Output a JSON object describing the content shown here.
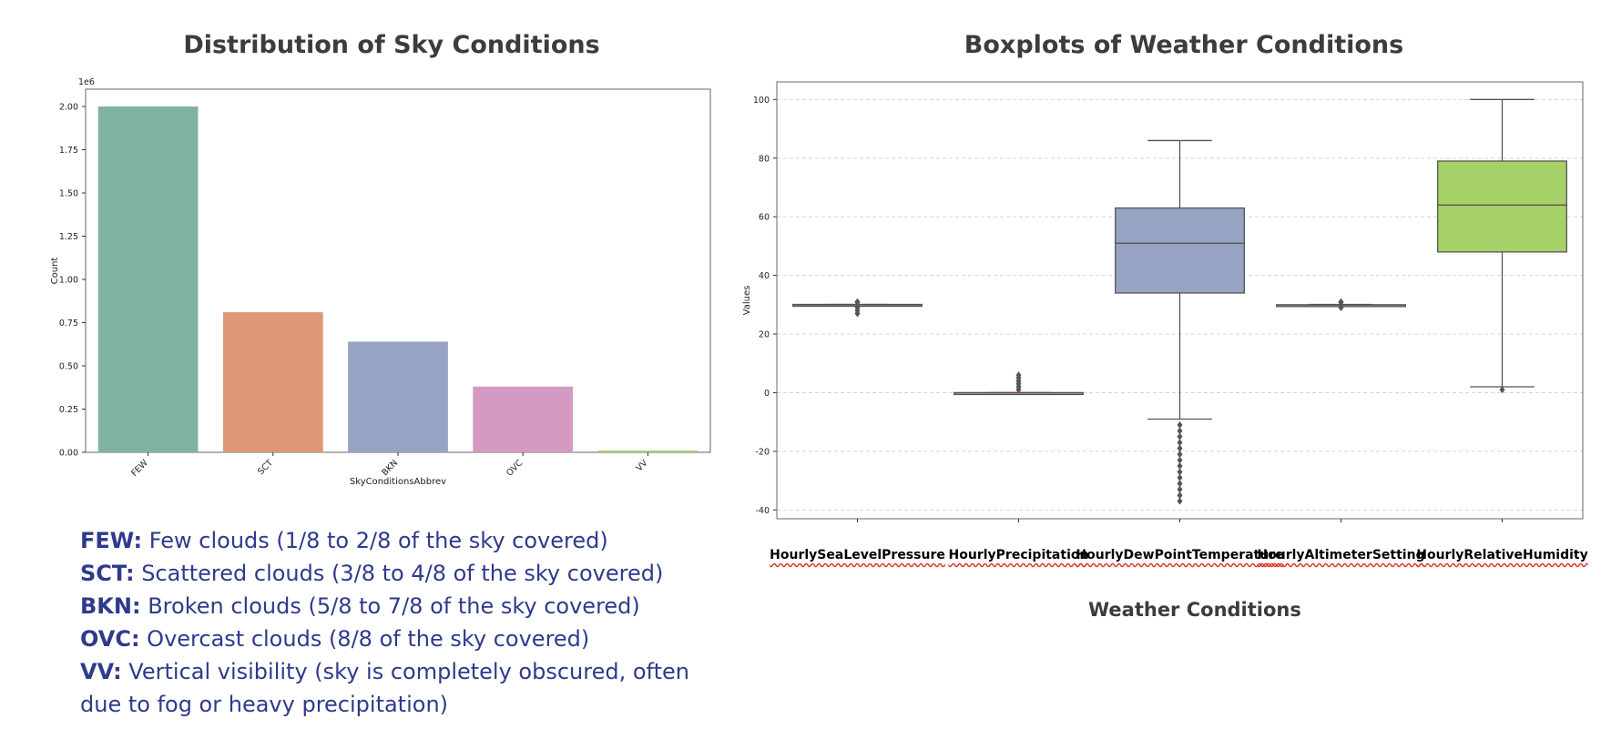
{
  "left_title": "Distribution of Sky Conditions",
  "right_title": "Boxplots of Weather Conditions",
  "legend": [
    {
      "abbr": "FEW:",
      "desc": " Few clouds (1/8 to 2/8 of the sky covered)"
    },
    {
      "abbr": "SCT:",
      "desc": " Scattered clouds (3/8 to 4/8 of the sky covered)"
    },
    {
      "abbr": "BKN:",
      "desc": " Broken clouds (5/8 to 7/8 of the sky covered)"
    },
    {
      "abbr": "OVC:",
      "desc": " Overcast clouds (8/8 of the sky covered)"
    },
    {
      "abbr": "VV:",
      "desc": " Vertical visibility (sky is completely obscured, often due to fog or heavy precipitation)"
    }
  ],
  "box_xlabel": "Weather Conditions",
  "colors": {
    "legend_text": "#2e3a8c",
    "title_text": "#3c3c3c"
  },
  "chart_data": [
    {
      "type": "bar",
      "categories": [
        "FEW",
        "SCT",
        "BKN",
        "OVC",
        "VV"
      ],
      "values": [
        2.0,
        0.81,
        0.64,
        0.38,
        0.01
      ],
      "colors": [
        "#7fb3a0",
        "#dd9676",
        "#97a3c2",
        "#d49ac2",
        "#a6d068"
      ],
      "ylabel": "Count",
      "xlabel": "SkyConditionsAbbrev",
      "y_offset_text": "1e6",
      "ylim": [
        0,
        2.1
      ],
      "yticks": [
        "0.00",
        "0.25",
        "0.50",
        "0.75",
        "1.00",
        "1.25",
        "1.50",
        "1.75",
        "2.00"
      ]
    },
    {
      "type": "box",
      "categories": [
        "HourlySeaLevelPressure",
        "HourlyPrecipitation",
        "HourlyDewPointTemperature",
        "HourlyAltimeterSetting",
        "HourlyRelativeHumidity"
      ],
      "boxes": [
        {
          "whisker_low": 29.9,
          "q1": 29.9,
          "median": 30.0,
          "q3": 30.1,
          "whisker_high": 30.1,
          "outliers": [
            27,
            28,
            29,
            30.8,
            31
          ]
        },
        {
          "whisker_low": 0,
          "q1": 0,
          "median": 0,
          "q3": 0,
          "whisker_high": 0,
          "outliers": [
            1,
            2,
            3,
            4,
            5,
            6
          ]
        },
        {
          "whisker_low": -9,
          "q1": 34,
          "median": 51,
          "q3": 63,
          "whisker_high": 86,
          "outliers": [
            -11,
            -13,
            -15,
            -17,
            -19,
            -21,
            -23,
            -25,
            -27,
            -29,
            -31,
            -33,
            -35,
            -37
          ]
        },
        {
          "whisker_low": 29.8,
          "q1": 29.8,
          "median": 29.9,
          "q3": 30.0,
          "whisker_high": 30.1,
          "outliers": [
            29,
            30.8,
            31
          ]
        },
        {
          "whisker_low": 2,
          "q1": 48,
          "median": 64,
          "q3": 79,
          "whisker_high": 100,
          "outliers": [
            1
          ]
        }
      ],
      "colors": [
        "#7fb3a0",
        "#dd9676",
        "#97a3c2",
        "#d49ac2",
        "#a6d068"
      ],
      "ylabel": "Values",
      "ylim": [
        -43,
        106
      ],
      "yticks": [
        -40,
        -20,
        0,
        20,
        40,
        60,
        80,
        100
      ],
      "grid": "horizontal dashed"
    }
  ]
}
